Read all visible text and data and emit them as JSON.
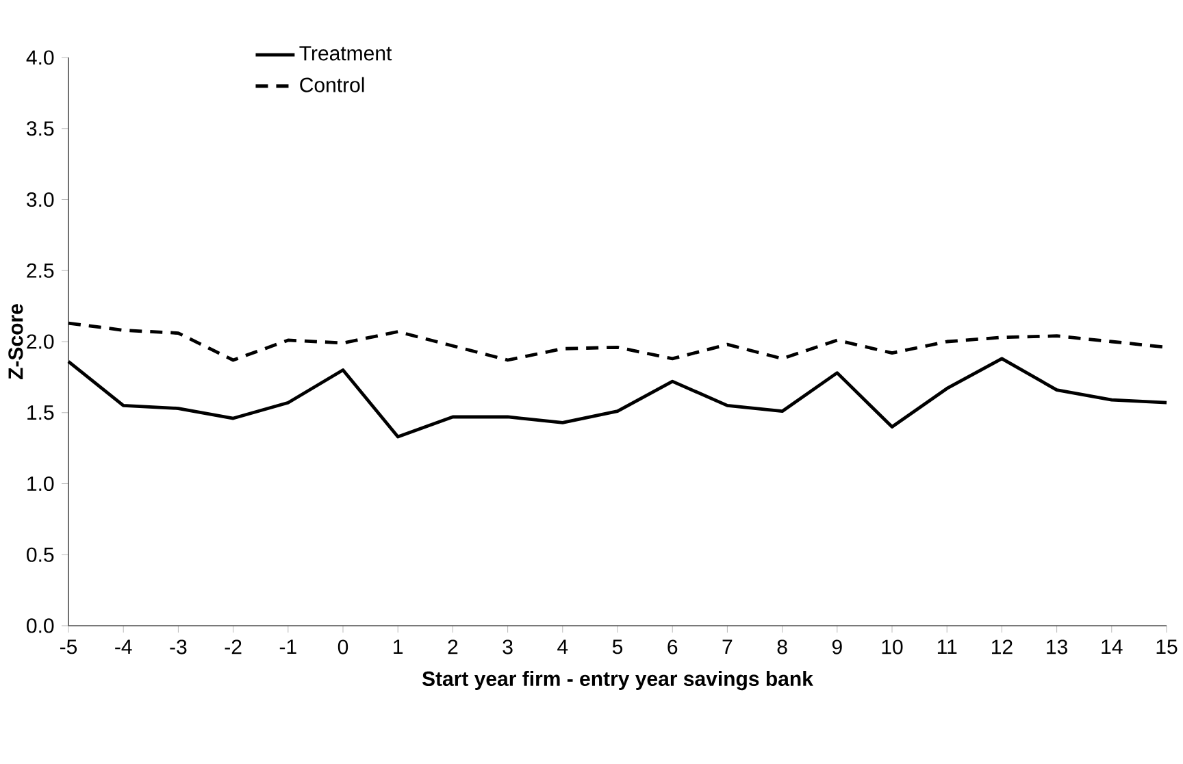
{
  "chart_data": {
    "type": "line",
    "xlabel": "Start year firm - entry year savings bank",
    "ylabel": "Z-Score",
    "x": [
      -5,
      -4,
      -3,
      -2,
      -1,
      0,
      1,
      2,
      3,
      4,
      5,
      6,
      7,
      8,
      9,
      10,
      11,
      12,
      13,
      14,
      15
    ],
    "series": [
      {
        "name": "Treatment",
        "color": "#000000",
        "line_style": "solid",
        "values": [
          1.86,
          1.55,
          1.53,
          1.46,
          1.57,
          1.8,
          1.33,
          1.47,
          1.47,
          1.43,
          1.51,
          1.72,
          1.55,
          1.51,
          1.78,
          1.4,
          1.67,
          1.88,
          1.66,
          1.59,
          1.57
        ]
      },
      {
        "name": "Control",
        "color": "#000000",
        "line_style": "dashed",
        "values": [
          2.13,
          2.08,
          2.06,
          1.87,
          2.01,
          1.99,
          2.07,
          1.97,
          1.87,
          1.95,
          1.96,
          1.88,
          1.98,
          1.88,
          2.01,
          1.92,
          2.0,
          2.03,
          2.04,
          2.0,
          1.96
        ]
      }
    ],
    "xlim": [
      -5,
      15
    ],
    "xticks": [
      -5,
      -4,
      -3,
      -2,
      -1,
      0,
      1,
      2,
      3,
      4,
      5,
      6,
      7,
      8,
      9,
      10,
      11,
      12,
      13,
      14,
      15
    ],
    "ylim": [
      0,
      4
    ],
    "yticks": [
      {
        "value": 0,
        "label": "0.0"
      },
      {
        "value": 0.5,
        "label": "0.5"
      },
      {
        "value": 1,
        "label": "1.0"
      },
      {
        "value": 1.5,
        "label": "1.5"
      },
      {
        "value": 2,
        "label": "2.0"
      },
      {
        "value": 2.5,
        "label": "2.5"
      },
      {
        "value": 3,
        "label": "3.0"
      },
      {
        "value": 3.5,
        "label": "3.5"
      },
      {
        "value": 4,
        "label": "4.0"
      }
    ],
    "legend": "top left",
    "grid": false,
    "marker": "none"
  }
}
